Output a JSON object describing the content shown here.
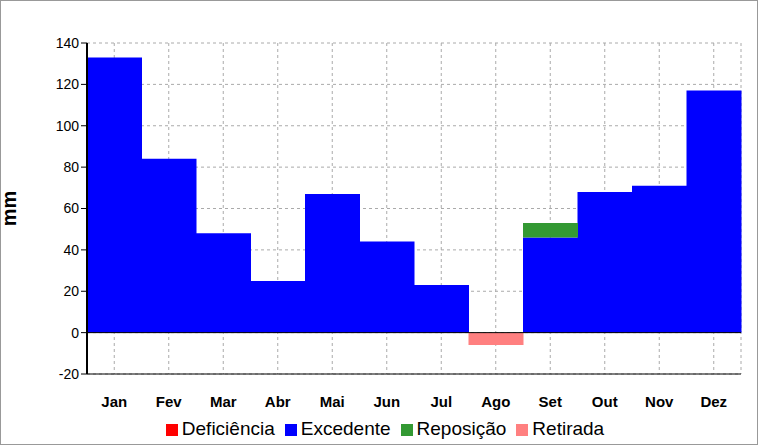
{
  "chart_data": {
    "type": "bar",
    "stacked": true,
    "y_label": "mm",
    "categories": [
      "Jan",
      "Fev",
      "Mar",
      "Abr",
      "Mai",
      "Jun",
      "Jul",
      "Ago",
      "Set",
      "Out",
      "Nov",
      "Dez"
    ],
    "series": [
      {
        "name": "Deficiência",
        "color": "#ff0000",
        "values": [
          0,
          0,
          0,
          0,
          0,
          0,
          0,
          0,
          0,
          0,
          0,
          0
        ]
      },
      {
        "name": "Excedente",
        "color": "#0000ff",
        "values": [
          133,
          84,
          48,
          25,
          67,
          44,
          23,
          0,
          46,
          68,
          71,
          117
        ]
      },
      {
        "name": "Retirada",
        "color": "#ff8080",
        "values": [
          0,
          0,
          0,
          0,
          0,
          0,
          0,
          -6,
          0,
          0,
          0,
          0
        ]
      },
      {
        "name": "Reposição",
        "color": "#339933",
        "values": [
          0,
          0,
          0,
          0,
          0,
          0,
          0,
          0,
          7,
          0,
          0,
          0
        ]
      }
    ],
    "ylim": [
      -20,
      140
    ],
    "yticks": [
      -20,
      0,
      20,
      40,
      60,
      80,
      100,
      120,
      140
    ],
    "grid": true,
    "legend": "bottom"
  }
}
